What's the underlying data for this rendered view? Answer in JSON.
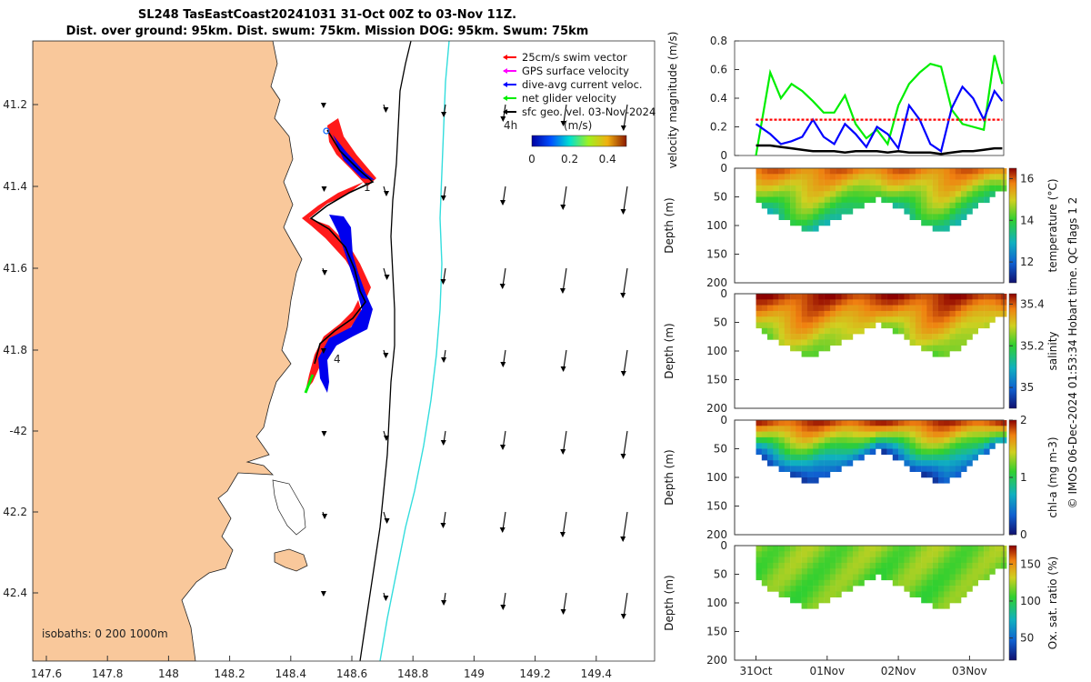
{
  "title": {
    "line1": "SL248 TasEastCoast20241031 31-Oct 00Z to 03-Nov 11Z.",
    "line2": "Dist. over ground: 95km. Dist. swum: 75km. Mission DOG: 95km. Swum: 75km"
  },
  "map": {
    "lon_ticks": [
      "147.6",
      "147.8",
      "148",
      "148.2",
      "148.4",
      "148.6",
      "148.8",
      "149",
      "149.2",
      "149.4"
    ],
    "lat_ticks": [
      "41.2",
      "41.4",
      "41.6",
      "41.8",
      "-42",
      "42.2",
      "42.4"
    ],
    "isobaths_label": "isobaths: 0   200  1000m",
    "legend": [
      {
        "label": "25cm/s swim vector",
        "color": "#ff0000"
      },
      {
        "label": "GPS surface velocity",
        "color": "#ff00ff"
      },
      {
        "label": "dive-avg current veloc.",
        "color": "#0000ff"
      },
      {
        "label": "net glider velocity",
        "color": "#00ee00"
      },
      {
        "label": "sfc geo. vel. 03-Nov-2024",
        "color": "#000000"
      }
    ],
    "scale_label": "4h",
    "colorbar": {
      "title": "(m/s)",
      "ticks": [
        "0",
        "0.2",
        "0.4"
      ],
      "range": [
        0,
        0.5
      ]
    },
    "track_labels": [
      "1",
      "4"
    ],
    "colors": {
      "land": "#f9c89b",
      "isobath_200": "#000000",
      "isobath_1000": "#33dddd"
    }
  },
  "chart_data": [
    {
      "type": "line",
      "ylabel": "velocity magnitude (m/s)",
      "ylim": [
        0,
        0.8
      ],
      "yticks": [
        "0",
        "0.2",
        "0.4",
        "0.6",
        "0.8"
      ],
      "x": [
        0,
        0.2,
        0.35,
        0.5,
        0.65,
        0.8,
        0.95,
        1.1,
        1.25,
        1.4,
        1.55,
        1.7,
        1.85,
        2.0,
        2.15,
        2.3,
        2.45,
        2.6,
        2.75,
        2.9,
        3.05,
        3.2,
        3.35,
        3.46
      ],
      "series": [
        {
          "name": "net glider velocity",
          "color": "#00ee00",
          "values": [
            0.0,
            0.58,
            0.4,
            0.5,
            0.45,
            0.38,
            0.3,
            0.3,
            0.42,
            0.22,
            0.12,
            0.18,
            0.08,
            0.35,
            0.5,
            0.58,
            0.64,
            0.62,
            0.32,
            0.22,
            0.2,
            0.18,
            0.7,
            0.5
          ]
        },
        {
          "name": "dive-avg current veloc.",
          "color": "#0000ff",
          "values": [
            0.22,
            0.15,
            0.08,
            0.1,
            0.13,
            0.25,
            0.13,
            0.08,
            0.22,
            0.15,
            0.06,
            0.2,
            0.15,
            0.05,
            0.35,
            0.25,
            0.08,
            0.03,
            0.33,
            0.48,
            0.4,
            0.25,
            0.45,
            0.38
          ]
        },
        {
          "name": "25cm/s swim vector",
          "color": "#ff0000",
          "values": [
            0.25,
            0.25,
            0.25,
            0.25,
            0.25,
            0.25,
            0.25,
            0.25,
            0.25,
            0.25,
            0.25,
            0.25,
            0.25,
            0.25,
            0.25,
            0.25,
            0.25,
            0.25,
            0.25,
            0.25,
            0.25,
            0.25,
            0.25,
            0.25
          ]
        },
        {
          "name": "sfc geo. vel.",
          "color": "#000000",
          "values": [
            0.07,
            0.07,
            0.06,
            0.05,
            0.04,
            0.03,
            0.03,
            0.03,
            0.02,
            0.03,
            0.03,
            0.03,
            0.02,
            0.03,
            0.02,
            0.02,
            0.02,
            0.01,
            0.02,
            0.03,
            0.03,
            0.04,
            0.05,
            0.05
          ]
        }
      ]
    },
    {
      "type": "heatmap",
      "variable": "temperature (°C)",
      "ylabel": "Depth (m)",
      "ylim": [
        200,
        0
      ],
      "yticks": [
        "0",
        "50",
        "100",
        "150",
        "200"
      ],
      "cbar_range": [
        11,
        16.5
      ],
      "cbar_ticks": [
        "12",
        "14",
        "16"
      ],
      "surface_value": 15.6,
      "deep_value": 13.2
    },
    {
      "type": "heatmap",
      "variable": "salinity",
      "ylabel": "Depth (m)",
      "ylim": [
        200,
        0
      ],
      "yticks": [
        "0",
        "50",
        "100",
        "150",
        "200"
      ],
      "cbar_range": [
        34.9,
        35.45
      ],
      "cbar_ticks": [
        "35",
        "35.2",
        "35.4"
      ],
      "surface_value": 35.42,
      "deep_value": 35.22
    },
    {
      "type": "heatmap",
      "variable": "chl-a (mg m-3)",
      "ylabel": "Depth (m)",
      "ylim": [
        200,
        0
      ],
      "yticks": [
        "0",
        "50",
        "100",
        "150",
        "200"
      ],
      "cbar_range": [
        0,
        2
      ],
      "cbar_ticks": [
        "0",
        "1",
        "2"
      ],
      "surface_value": 1.8,
      "deep_value": 0.2
    },
    {
      "type": "heatmap",
      "variable": "Ox. sat. ratio (%)",
      "ylabel": "Depth (m)",
      "ylim": [
        200,
        0
      ],
      "yticks": [
        "0",
        "50",
        "100",
        "150",
        "200"
      ],
      "cbar_range": [
        20,
        175
      ],
      "cbar_ticks": [
        "50",
        "100",
        "150"
      ],
      "surface_value": 110,
      "deep_value": 105
    }
  ],
  "time_axis": {
    "ticks": [
      "31Oct",
      "01Nov",
      "02Nov",
      "03Nov"
    ],
    "values": [
      0,
      1,
      2,
      3
    ],
    "range": [
      -0.3,
      3.48
    ]
  },
  "footer": "© IMOS 06-Dec-2024 01:53:34 Hobart time. QC flags 1  2"
}
